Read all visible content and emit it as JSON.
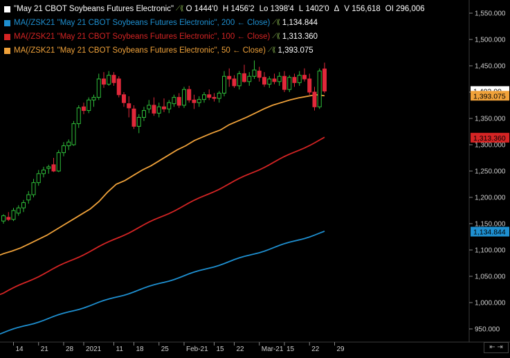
{
  "legend": {
    "main": {
      "label": "\"May 21 CBOT Soybeans Futures Electronic\"",
      "color": "#ffffff",
      "o_label": "O",
      "o_value": "1444'0",
      "h_label": "H",
      "h_value": "1456'2",
      "lo_label": "Lo",
      "lo_value": "1398'4",
      "l_label": "L",
      "l_value": "1402'0",
      "delta": "Δ",
      "v_label": "V",
      "v_value": "156,618",
      "oi_label": "OI",
      "oi_value": "296,006"
    },
    "ma200": {
      "label": "MA(/ZSK21 \"May 21 CBOT Soybeans Futures Electronic\", 200 ← Close)",
      "value": "1,134.844",
      "color": "#1e8fd0"
    },
    "ma100": {
      "label": "MA(/ZSK21 \"May 21 CBOT Soybeans Futures Electronic\", 100 ← Close)",
      "value": "1,313.360",
      "color": "#d42424"
    },
    "ma50": {
      "label": "MA(/ZSK21 \"May 21 CBOT Soybeans Futures Electronic\", 50 ← Close)",
      "value": "1,393.075",
      "color": "#f0a23a"
    }
  },
  "badges": {
    "last_price": "1,402.00",
    "ma50": "1,393.075",
    "ma100": "1,313.360",
    "ma200": "1,134.844"
  },
  "scroll_button": "⇤ ⇥",
  "chart_data": {
    "type": "candlestick",
    "ylim": [
      925,
      1575
    ],
    "yticks": [
      950,
      1000,
      1050,
      1100,
      1150,
      1200,
      1250,
      1300,
      1350,
      1400,
      1450,
      1500,
      1550
    ],
    "ytick_labels": [
      "950.000",
      "1,000.000",
      "1,050.000",
      "1,100.000",
      "1,150.000",
      "1,200.000",
      "1,250.000",
      "1,300.000",
      "1,350.000",
      "1,400.000",
      "1,450.000",
      "1,500.000",
      "1,550.000"
    ],
    "xtick_labels": [
      {
        "bar": 2,
        "label": "14"
      },
      {
        "bar": 7,
        "label": "21"
      },
      {
        "bar": 12,
        "label": "28"
      },
      {
        "bar": 16,
        "label": "2021"
      },
      {
        "bar": 22,
        "label": "11"
      },
      {
        "bar": 26,
        "label": "18"
      },
      {
        "bar": 31,
        "label": "25"
      },
      {
        "bar": 36,
        "label": "Feb-21"
      },
      {
        "bar": 42,
        "label": "15"
      },
      {
        "bar": 46,
        "label": "22"
      },
      {
        "bar": 51,
        "label": "Mar-21"
      },
      {
        "bar": 56,
        "label": "15"
      },
      {
        "bar": 61,
        "label": "22"
      },
      {
        "bar": 66,
        "label": "29"
      }
    ],
    "grid": false,
    "candles": [
      {
        "o": 1155,
        "h": 1168,
        "l": 1150,
        "c": 1165
      },
      {
        "o": 1162,
        "h": 1172,
        "l": 1155,
        "c": 1158
      },
      {
        "o": 1158,
        "h": 1180,
        "l": 1155,
        "c": 1175
      },
      {
        "o": 1170,
        "h": 1185,
        "l": 1165,
        "c": 1180
      },
      {
        "o": 1180,
        "h": 1195,
        "l": 1172,
        "c": 1190
      },
      {
        "o": 1195,
        "h": 1212,
        "l": 1188,
        "c": 1205
      },
      {
        "o": 1205,
        "h": 1235,
        "l": 1200,
        "c": 1228
      },
      {
        "o": 1228,
        "h": 1252,
        "l": 1222,
        "c": 1245
      },
      {
        "o": 1245,
        "h": 1258,
        "l": 1238,
        "c": 1252
      },
      {
        "o": 1255,
        "h": 1262,
        "l": 1245,
        "c": 1258
      },
      {
        "o": 1262,
        "h": 1275,
        "l": 1248,
        "c": 1250
      },
      {
        "o": 1250,
        "h": 1290,
        "l": 1248,
        "c": 1285
      },
      {
        "o": 1285,
        "h": 1305,
        "l": 1278,
        "c": 1298
      },
      {
        "o": 1298,
        "h": 1310,
        "l": 1290,
        "c": 1305
      },
      {
        "o": 1300,
        "h": 1345,
        "l": 1298,
        "c": 1340
      },
      {
        "o": 1340,
        "h": 1375,
        "l": 1332,
        "c": 1370
      },
      {
        "o": 1372,
        "h": 1380,
        "l": 1358,
        "c": 1365
      },
      {
        "o": 1365,
        "h": 1390,
        "l": 1360,
        "c": 1385
      },
      {
        "o": 1385,
        "h": 1395,
        "l": 1372,
        "c": 1390
      },
      {
        "o": 1390,
        "h": 1435,
        "l": 1385,
        "c": 1425
      },
      {
        "o": 1425,
        "h": 1438,
        "l": 1408,
        "c": 1415
      },
      {
        "o": 1415,
        "h": 1440,
        "l": 1412,
        "c": 1432
      },
      {
        "o": 1432,
        "h": 1438,
        "l": 1412,
        "c": 1418
      },
      {
        "o": 1425,
        "h": 1430,
        "l": 1390,
        "c": 1395
      },
      {
        "o": 1395,
        "h": 1400,
        "l": 1372,
        "c": 1380
      },
      {
        "o": 1378,
        "h": 1392,
        "l": 1352,
        "c": 1370
      },
      {
        "o": 1368,
        "h": 1375,
        "l": 1330,
        "c": 1335
      },
      {
        "o": 1335,
        "h": 1358,
        "l": 1322,
        "c": 1352
      },
      {
        "o": 1352,
        "h": 1372,
        "l": 1345,
        "c": 1365
      },
      {
        "o": 1368,
        "h": 1385,
        "l": 1360,
        "c": 1375
      },
      {
        "o": 1375,
        "h": 1390,
        "l": 1355,
        "c": 1360
      },
      {
        "o": 1360,
        "h": 1380,
        "l": 1352,
        "c": 1372
      },
      {
        "o": 1372,
        "h": 1388,
        "l": 1362,
        "c": 1368
      },
      {
        "o": 1368,
        "h": 1385,
        "l": 1360,
        "c": 1380
      },
      {
        "o": 1378,
        "h": 1395,
        "l": 1372,
        "c": 1390
      },
      {
        "o": 1390,
        "h": 1398,
        "l": 1370,
        "c": 1375
      },
      {
        "o": 1375,
        "h": 1410,
        "l": 1370,
        "c": 1405
      },
      {
        "o": 1405,
        "h": 1412,
        "l": 1380,
        "c": 1385
      },
      {
        "o": 1385,
        "h": 1395,
        "l": 1368,
        "c": 1380
      },
      {
        "o": 1380,
        "h": 1392,
        "l": 1372,
        "c": 1386
      },
      {
        "o": 1386,
        "h": 1400,
        "l": 1380,
        "c": 1395
      },
      {
        "o": 1395,
        "h": 1405,
        "l": 1385,
        "c": 1390
      },
      {
        "o": 1390,
        "h": 1398,
        "l": 1382,
        "c": 1388
      },
      {
        "o": 1388,
        "h": 1402,
        "l": 1380,
        "c": 1398
      },
      {
        "o": 1398,
        "h": 1440,
        "l": 1392,
        "c": 1430
      },
      {
        "o": 1430,
        "h": 1445,
        "l": 1410,
        "c": 1425
      },
      {
        "o": 1425,
        "h": 1432,
        "l": 1408,
        "c": 1412
      },
      {
        "o": 1412,
        "h": 1440,
        "l": 1405,
        "c": 1435
      },
      {
        "o": 1435,
        "h": 1452,
        "l": 1418,
        "c": 1420
      },
      {
        "o": 1420,
        "h": 1438,
        "l": 1412,
        "c": 1430
      },
      {
        "o": 1430,
        "h": 1460,
        "l": 1425,
        "c": 1442
      },
      {
        "o": 1440,
        "h": 1448,
        "l": 1420,
        "c": 1428
      },
      {
        "o": 1428,
        "h": 1438,
        "l": 1410,
        "c": 1415
      },
      {
        "o": 1415,
        "h": 1430,
        "l": 1408,
        "c": 1425
      },
      {
        "o": 1425,
        "h": 1435,
        "l": 1415,
        "c": 1420
      },
      {
        "o": 1420,
        "h": 1438,
        "l": 1412,
        "c": 1430
      },
      {
        "o": 1430,
        "h": 1440,
        "l": 1400,
        "c": 1405
      },
      {
        "o": 1405,
        "h": 1432,
        "l": 1400,
        "c": 1428
      },
      {
        "o": 1428,
        "h": 1435,
        "l": 1410,
        "c": 1418
      },
      {
        "o": 1418,
        "h": 1440,
        "l": 1412,
        "c": 1432
      },
      {
        "o": 1432,
        "h": 1445,
        "l": 1420,
        "c": 1425
      },
      {
        "o": 1425,
        "h": 1435,
        "l": 1395,
        "c": 1400
      },
      {
        "o": 1400,
        "h": 1410,
        "l": 1365,
        "c": 1372
      },
      {
        "o": 1372,
        "h": 1445,
        "l": 1368,
        "c": 1440
      },
      {
        "o": 1444,
        "h": 1456,
        "l": 1398,
        "c": 1402
      }
    ],
    "series": [
      {
        "name": "MA 200",
        "color": "#1e8fd0",
        "start": 943,
        "end": 1134.844
      },
      {
        "name": "MA 100",
        "color": "#d42424",
        "start": 1018,
        "end": 1313.36
      },
      {
        "name": "MA 50",
        "color": "#f0a23a",
        "values": [
          1093,
          1098,
          1104,
          1112,
          1120,
          1128,
          1138,
          1148,
          1158,
          1168,
          1178,
          1192,
          1210,
          1225,
          1232,
          1242,
          1252,
          1260,
          1270,
          1280,
          1290,
          1298,
          1308,
          1315,
          1322,
          1328,
          1338,
          1345,
          1352,
          1360,
          1368,
          1375,
          1380,
          1385,
          1389,
          1392,
          1395,
          1393.075
        ]
      }
    ]
  }
}
